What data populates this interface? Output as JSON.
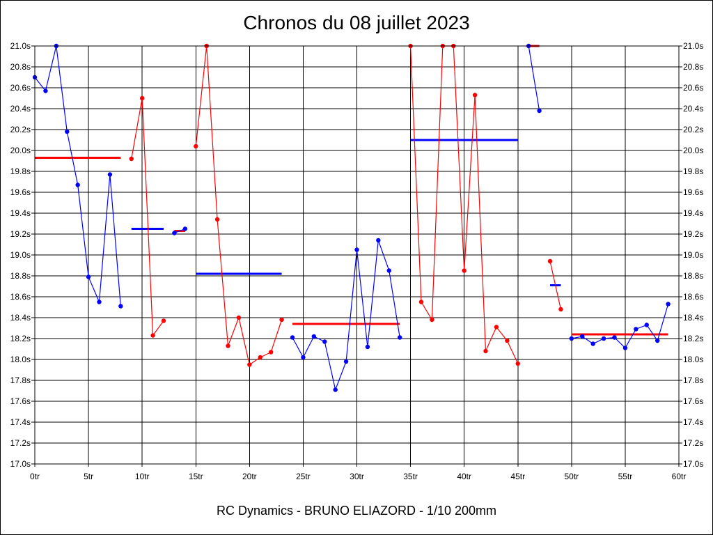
{
  "chart_data": {
    "type": "line",
    "title": "Chronos du 08 juillet 2023",
    "subtitle": "RC Dynamics - BRUNO ELIAZORD - 1/10 200mm",
    "xlim": [
      0,
      60
    ],
    "ylim": [
      17.0,
      21.0
    ],
    "x_ticks": [
      0,
      5,
      10,
      15,
      20,
      25,
      30,
      35,
      40,
      45,
      50,
      55,
      60
    ],
    "x_tick_labels": [
      "0tr",
      "5tr",
      "10tr",
      "15tr",
      "20tr",
      "25tr",
      "30tr",
      "35tr",
      "40tr",
      "45tr",
      "50tr",
      "55tr",
      "60tr"
    ],
    "y_ticks": [
      17.0,
      17.2,
      17.4,
      17.6,
      17.8,
      18.0,
      18.2,
      18.4,
      18.6,
      18.8,
      19.0,
      19.2,
      19.4,
      19.6,
      19.8,
      20.0,
      20.2,
      20.4,
      20.6,
      20.8,
      21.0
    ],
    "y_tick_labels": [
      "17.0s",
      "17.2s",
      "17.4s",
      "17.6s",
      "17.8s",
      "18.0s",
      "18.2s",
      "18.4s",
      "18.6s",
      "18.8s",
      "19.0s",
      "19.2s",
      "19.4s",
      "19.6s",
      "19.8s",
      "20.0s",
      "20.2s",
      "20.4s",
      "20.6s",
      "20.8s",
      "21.0s"
    ],
    "grid": true,
    "colors": {
      "blue": "#0000ff",
      "red": "#ff0000"
    },
    "series": [
      {
        "color": "blue",
        "x": [
          0,
          1,
          2,
          3,
          4,
          5,
          6,
          7,
          8
        ],
        "y": [
          20.7,
          20.57,
          21.0,
          20.18,
          19.67,
          18.79,
          18.55,
          19.77,
          18.51
        ],
        "mean": 19.93,
        "mean_color": "red",
        "mean_range": [
          0,
          8
        ]
      },
      {
        "color": "red",
        "x": [
          9,
          10,
          11,
          12
        ],
        "y": [
          19.92,
          20.5,
          18.23,
          18.37
        ],
        "mean": 19.25,
        "mean_color": "blue",
        "mean_range": [
          9,
          12
        ]
      },
      {
        "color": "blue",
        "x": [
          13,
          14
        ],
        "y": [
          19.21,
          19.25
        ],
        "mean": 19.23,
        "mean_color": "red",
        "mean_range": [
          13,
          14
        ]
      },
      {
        "color": "red",
        "x": [
          15,
          16,
          17,
          18,
          19,
          20,
          21,
          22,
          23
        ],
        "y": [
          20.04,
          21.0,
          19.34,
          18.13,
          18.4,
          17.95,
          18.02,
          18.07,
          18.38
        ],
        "mean": 18.82,
        "mean_color": "blue",
        "mean_range": [
          15,
          23
        ]
      },
      {
        "color": "blue",
        "x": [
          24,
          25,
          26,
          27,
          28,
          29,
          30,
          31,
          32,
          33,
          34
        ],
        "y": [
          18.21,
          18.02,
          18.22,
          18.17,
          17.71,
          17.98,
          19.05,
          18.12,
          19.14,
          18.85,
          18.21
        ],
        "mean": 18.34,
        "mean_color": "red",
        "mean_range": [
          24,
          34
        ]
      },
      {
        "color": "red",
        "x": [
          35,
          36,
          37,
          38,
          39,
          40,
          41,
          42,
          43,
          44,
          45
        ],
        "y": [
          21.0,
          18.55,
          18.38,
          21.0,
          21.0,
          18.85,
          20.53,
          18.08,
          18.31,
          18.18,
          17.96
        ],
        "mean": 20.1,
        "mean_color": "blue",
        "mean_range": [
          35,
          45
        ]
      },
      {
        "color": "blue",
        "x": [
          46,
          47
        ],
        "y": [
          21.0,
          20.38
        ],
        "mean": 21.0,
        "mean_color": "red",
        "mean_range": [
          46,
          47
        ]
      },
      {
        "color": "red",
        "x": [
          48,
          49
        ],
        "y": [
          18.94,
          18.48
        ],
        "mean": 18.71,
        "mean_color": "blue",
        "mean_range": [
          48,
          49
        ]
      },
      {
        "color": "blue",
        "x": [
          50,
          51,
          52,
          53,
          54,
          55,
          56,
          57,
          58,
          59
        ],
        "y": [
          18.2,
          18.22,
          18.15,
          18.2,
          18.21,
          18.11,
          18.29,
          18.33,
          18.18,
          18.53
        ],
        "mean": 18.24,
        "mean_color": "red",
        "mean_range": [
          50,
          59
        ]
      }
    ]
  }
}
